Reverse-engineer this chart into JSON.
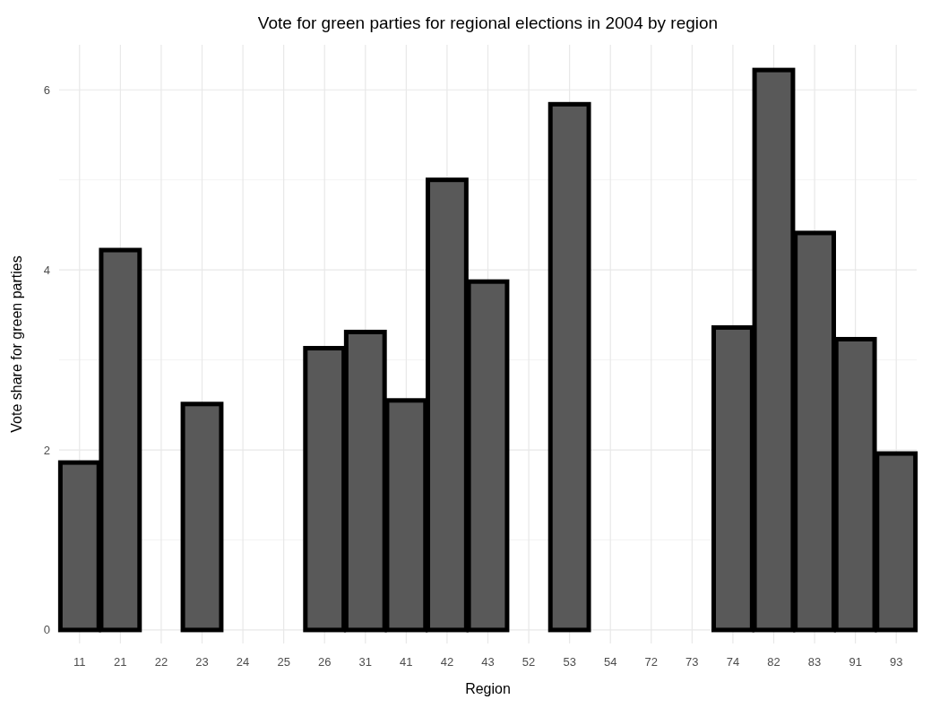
{
  "chart_data": {
    "type": "bar",
    "title": "Vote for green parties for regional elections in 2004 by region",
    "xlabel": "Region",
    "ylabel": "Vote share for green parties",
    "categories": [
      "11",
      "21",
      "22",
      "23",
      "24",
      "25",
      "26",
      "31",
      "41",
      "42",
      "43",
      "52",
      "53",
      "54",
      "72",
      "73",
      "74",
      "82",
      "83",
      "91",
      "93"
    ],
    "values": [
      1.86,
      4.22,
      0,
      2.51,
      0,
      0,
      3.13,
      3.31,
      2.55,
      5.0,
      3.87,
      0,
      5.84,
      0,
      0,
      0,
      3.36,
      6.22,
      4.41,
      3.23,
      1.96
    ],
    "color": "#595959",
    "ylim": [
      -0.15,
      6.5
    ],
    "yticks": [
      0,
      2,
      4,
      6
    ],
    "grid": true
  }
}
